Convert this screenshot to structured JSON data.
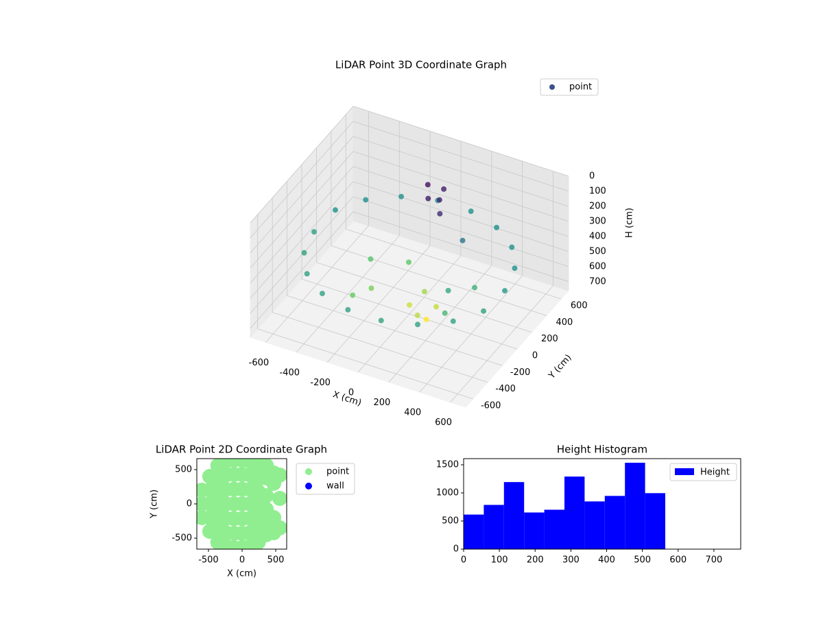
{
  "chart_data": [
    {
      "type": "scatter3d",
      "title": "LiDAR Point 3D Coordinate Graph",
      "xlabel": "X (cm)",
      "ylabel": "Y (cm)",
      "zlabel": "H (cm)",
      "xlim": [
        -700,
        700
      ],
      "ylim": [
        -700,
        700
      ],
      "zlim": [
        0,
        760
      ],
      "z_inverted": true,
      "xticks": [
        -600,
        -400,
        -200,
        0,
        200,
        400,
        600
      ],
      "yticks": [
        -600,
        -400,
        -200,
        0,
        200,
        400,
        600
      ],
      "zticks": [
        0,
        100,
        200,
        300,
        400,
        500,
        600,
        700
      ],
      "cmap": "viridis",
      "grid": true,
      "legend": "upper right",
      "series": [
        {
          "name": "point",
          "color": "#3b528b",
          "x": [
            620,
            583,
            475,
            310,
            108,
            -108,
            -310,
            -475,
            -583,
            -620,
            -583,
            -475,
            -310,
            -108,
            108,
            310,
            475,
            583,
            -300,
            -200,
            -100,
            0,
            100,
            50,
            -250,
            150,
            50,
            100,
            0,
            150,
            80,
            110,
            300,
            400,
            250,
            350
          ],
          "y": [
            0,
            212,
            399,
            537,
            611,
            611,
            537,
            399,
            212,
            0,
            -212,
            -399,
            -537,
            -611,
            -611,
            -537,
            -399,
            -212,
            100,
            -100,
            200,
            0,
            -100,
            100,
            -250,
            50,
            150,
            200,
            250,
            100,
            300,
            0,
            -100,
            50,
            200,
            -250
          ],
          "z": [
            400,
            380,
            380,
            380,
            380,
            380,
            380,
            380,
            380,
            420,
            430,
            430,
            430,
            430,
            430,
            430,
            430,
            430,
            550,
            600,
            560,
            700,
            680,
            650,
            580,
            690,
            60,
            80,
            40,
            100,
            70,
            760,
            450,
            480,
            300,
            500
          ]
        }
      ]
    },
    {
      "type": "scatter",
      "title": "LiDAR Point 2D Coordinate Graph",
      "xlabel": "X (cm)",
      "ylabel": "Y (cm)",
      "xlim": [
        -673,
        663
      ],
      "ylim": [
        -660,
        660
      ],
      "xticks": [
        -500,
        0,
        500
      ],
      "yticks": [
        -500,
        0,
        500
      ],
      "legend": "outside right",
      "series": [
        {
          "name": "point",
          "color": "#90ee90",
          "x": [
            -600,
            -600,
            -600,
            -480,
            -480,
            -480,
            -480,
            -480,
            -360,
            -360,
            -360,
            -360,
            -360,
            -360,
            -360,
            -240,
            -240,
            -240,
            -240,
            -240,
            -240,
            -240,
            -120,
            -120,
            -120,
            -120,
            -120,
            -120,
            -120,
            0,
            0,
            0,
            0,
            0,
            0,
            0,
            120,
            120,
            120,
            120,
            120,
            120,
            120,
            240,
            240,
            240,
            240,
            240,
            240,
            240,
            360,
            360,
            360,
            360,
            360,
            360,
            470,
            470,
            470,
            470,
            560,
            560,
            560
          ],
          "y": [
            -200,
            0,
            200,
            -400,
            -200,
            0,
            200,
            400,
            -560,
            -360,
            -180,
            0,
            180,
            360,
            560,
            -620,
            -420,
            -210,
            0,
            210,
            420,
            620,
            -640,
            -430,
            -215,
            0,
            215,
            430,
            640,
            -640,
            -430,
            -215,
            0,
            215,
            430,
            640,
            -620,
            -420,
            -210,
            0,
            210,
            420,
            620,
            -560,
            -360,
            -180,
            0,
            180,
            360,
            560,
            -450,
            -250,
            -80,
            120,
            380,
            560,
            -420,
            -200,
            300,
            450,
            -350,
            80,
            420
          ]
        },
        {
          "name": "wall",
          "color": "#0000ff",
          "x": [],
          "y": []
        }
      ]
    },
    {
      "type": "histogram",
      "title": "Height Histogram",
      "xlim": [
        0,
        775
      ],
      "ylim": [
        0,
        1610
      ],
      "xticks": [
        0,
        100,
        200,
        300,
        400,
        500,
        600,
        700
      ],
      "yticks": [
        0,
        500,
        1000,
        1500
      ],
      "legend": "upper right",
      "bins": [
        0,
        56.4,
        112.8,
        169.2,
        225.6,
        282,
        338.4,
        394.8,
        451.2,
        507.6,
        564
      ],
      "series": [
        {
          "name": "Height",
          "color": "#0000ff",
          "values": [
            615,
            787,
            1193,
            652,
            701,
            1291,
            849,
            947,
            1537,
            996
          ]
        }
      ]
    }
  ]
}
